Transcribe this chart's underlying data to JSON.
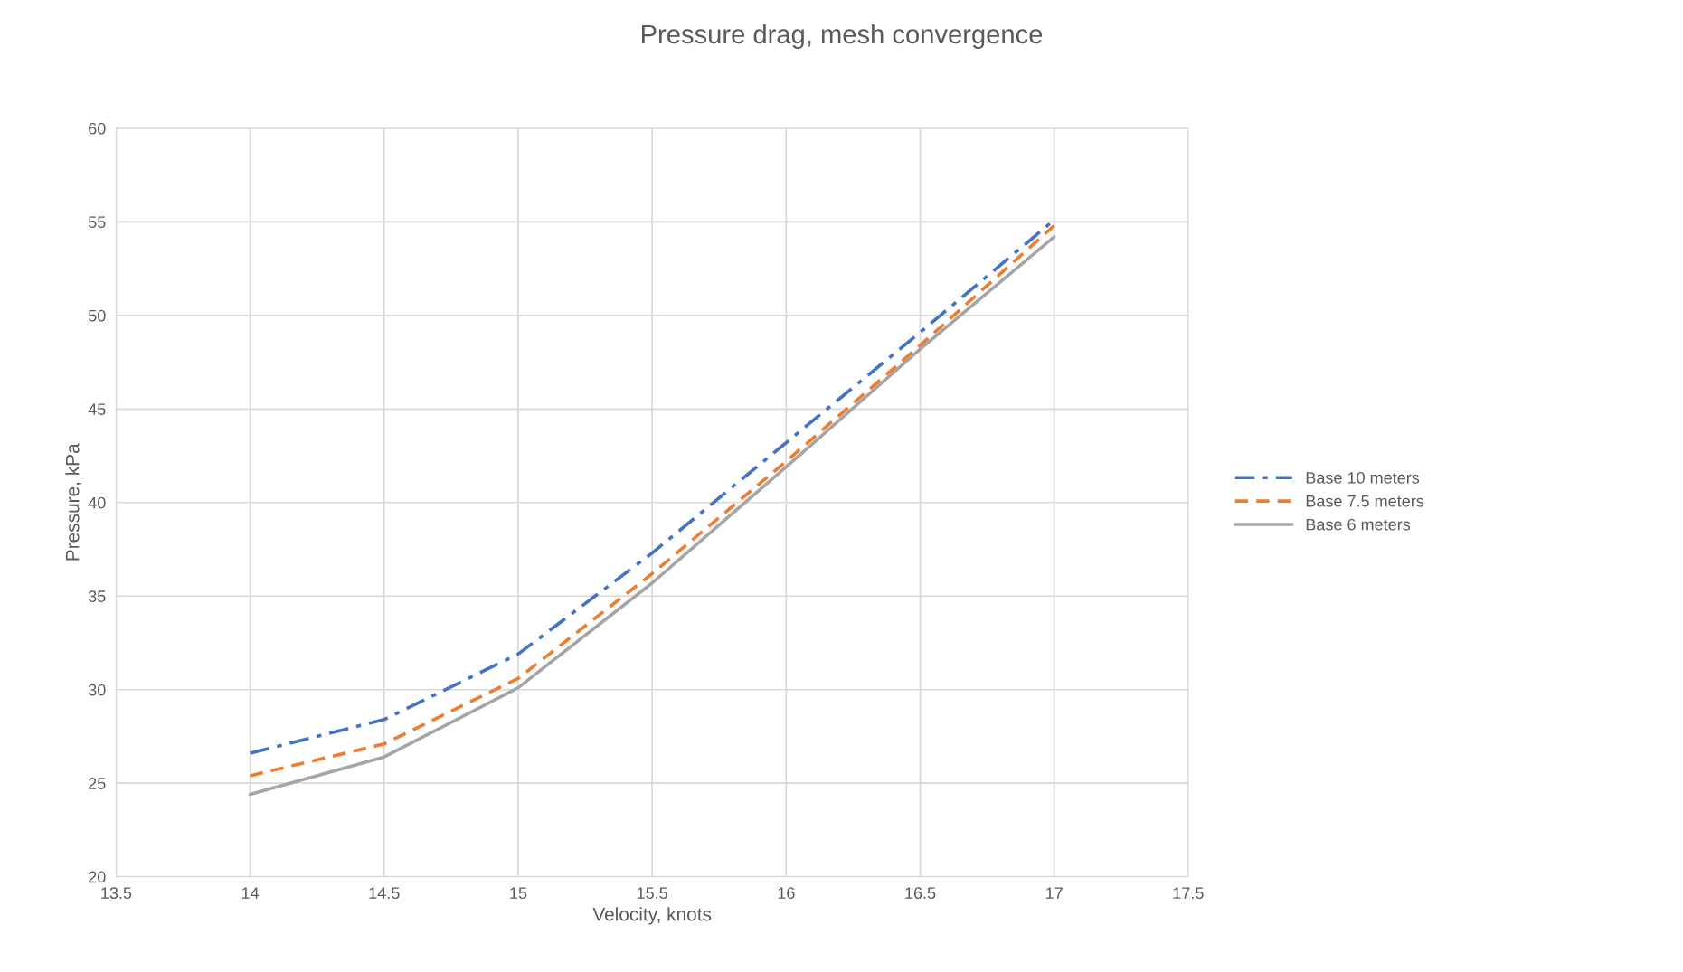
{
  "chart_data": {
    "type": "line",
    "title": "Pressure drag, mesh convergence",
    "xlabel": "Velocity, knots",
    "ylabel": "Pressure, kPa",
    "x": [
      14,
      14.5,
      15,
      15.5,
      16,
      16.5,
      17
    ],
    "series": [
      {
        "name": "Base 10 meters",
        "color": "#4472c4",
        "line_style": "dashdot",
        "values": [
          26.6,
          28.4,
          31.9,
          37.3,
          43.2,
          49.1,
          55.1
        ]
      },
      {
        "name": "Base 7.5 meters",
        "color": "#ed7d31",
        "line_style": "dashed",
        "values": [
          25.4,
          27.1,
          30.6,
          36.2,
          42.2,
          48.4,
          54.8
        ]
      },
      {
        "name": "Base 6 meters",
        "color": "#a5a5a5",
        "line_style": "solid",
        "values": [
          24.4,
          26.4,
          30.1,
          35.7,
          41.9,
          48.2,
          54.2
        ]
      }
    ],
    "xlim": [
      13.5,
      17.5
    ],
    "xticks": [
      13.5,
      14,
      14.5,
      15,
      15.5,
      16,
      16.5,
      17,
      17.5
    ],
    "ylim": [
      20,
      60
    ],
    "yticks": [
      20,
      25,
      30,
      35,
      40,
      45,
      50,
      55,
      60
    ],
    "grid": true,
    "legend": "right",
    "marker": "none"
  }
}
